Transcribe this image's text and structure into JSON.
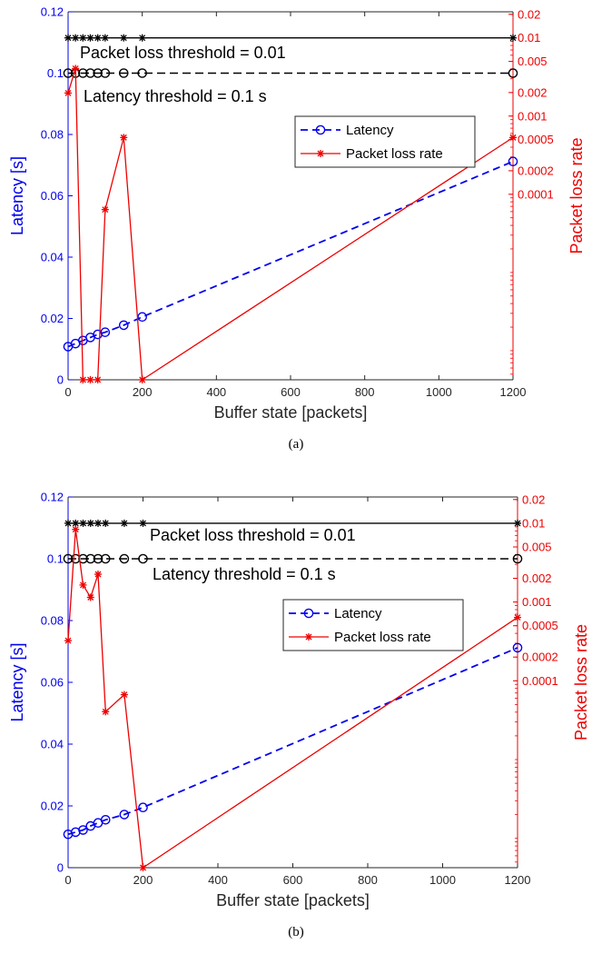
{
  "chart_data": [
    {
      "type": "line",
      "caption": "(a)",
      "xlabel": "Buffer state [packets]",
      "ylabel_left": "Latency [s]",
      "ylabel_right": "Packet loss rate",
      "xlim": [
        0,
        1200
      ],
      "ylim_left": [
        0,
        0.12
      ],
      "right_axis_scale": "log",
      "xticks": [
        0,
        200,
        400,
        600,
        800,
        1000,
        1200
      ],
      "yticks_left": [
        0,
        0.02,
        0.04,
        0.06,
        0.08,
        0.1,
        0.12
      ],
      "ytick_labels_left": [
        "0",
        "0.02",
        "0.04",
        "0.06",
        "0.08",
        "0.1",
        "0.12"
      ],
      "right_ticks": [
        {
          "label": "0.02",
          "value": 0.02
        },
        {
          "label": "0.01",
          "value": 0.01
        },
        {
          "label": "0.005",
          "value": 0.005
        },
        {
          "label": "0.002",
          "value": 0.002
        },
        {
          "label": "0.001",
          "value": 0.001
        },
        {
          "label": "0.0005",
          "value": 0.0005
        },
        {
          "label": "0.0002",
          "value": 0.0002
        },
        {
          "label": "0.0001",
          "value": 0.0001
        }
      ],
      "legend": {
        "placement": "upper-right",
        "entries": [
          "Latency",
          "Packet loss rate"
        ]
      },
      "annotations": [
        "Packet loss threshold = 0.01",
        "Latency threshold = 0.1 s"
      ],
      "thresholds": {
        "latency": 0.1,
        "packet_loss": 0.01
      },
      "threshold_marker_x": [
        0,
        20,
        40,
        60,
        80,
        100,
        150,
        200,
        1200
      ],
      "series": [
        {
          "name": "Latency",
          "axis": "left",
          "color": "#0000ee",
          "x": [
            0,
            20,
            40,
            60,
            80,
            100,
            150,
            200,
            1200
          ],
          "y": [
            0.0108,
            0.0118,
            0.0128,
            0.0138,
            0.0148,
            0.0155,
            0.0178,
            0.0205,
            0.0712
          ]
        },
        {
          "name": "Packet loss rate",
          "axis": "right",
          "color": "#ee0000",
          "x": [
            0,
            20,
            40,
            60,
            80,
            100,
            150,
            200,
            1200
          ],
          "y_axis_units": [
            0.0935,
            0.1015,
            0,
            0,
            0,
            0.0555,
            0.079,
            0,
            0.079
          ]
        }
      ]
    },
    {
      "type": "line",
      "caption": "(b)",
      "xlabel": "Buffer state [packets]",
      "ylabel_left": "Latency [s]",
      "ylabel_right": "Packet loss rate",
      "xlim": [
        0,
        1200
      ],
      "ylim_left": [
        0,
        0.12
      ],
      "right_axis_scale": "log",
      "xticks": [
        0,
        200,
        400,
        600,
        800,
        1000,
        1200
      ],
      "yticks_left": [
        0,
        0.02,
        0.04,
        0.06,
        0.08,
        0.1,
        0.12
      ],
      "ytick_labels_left": [
        "0",
        "0.02",
        "0.04",
        "0.06",
        "0.08",
        "0.1",
        "0.12"
      ],
      "right_ticks": [
        {
          "label": "0.02",
          "value": 0.02
        },
        {
          "label": "0.01",
          "value": 0.01
        },
        {
          "label": "0.005",
          "value": 0.005
        },
        {
          "label": "0.002",
          "value": 0.002
        },
        {
          "label": "0.001",
          "value": 0.001
        },
        {
          "label": "0.0005",
          "value": 0.0005
        },
        {
          "label": "0.0002",
          "value": 0.0002
        },
        {
          "label": "0.0001",
          "value": 0.0001
        }
      ],
      "legend": {
        "placement": "upper-right",
        "entries": [
          "Latency",
          "Packet loss rate"
        ]
      },
      "annotations": [
        "Packet loss threshold = 0.01",
        "Latency threshold = 0.1 s"
      ],
      "thresholds": {
        "latency": 0.1,
        "packet_loss": 0.01
      },
      "threshold_marker_x": [
        0,
        20,
        40,
        60,
        80,
        100,
        150,
        200,
        1200
      ],
      "series": [
        {
          "name": "Latency",
          "axis": "left",
          "color": "#0000ee",
          "x": [
            0,
            20,
            40,
            60,
            80,
            100,
            150,
            200,
            1200
          ],
          "y": [
            0.0108,
            0.0115,
            0.0122,
            0.0135,
            0.0145,
            0.0155,
            0.0172,
            0.0195,
            0.0712
          ]
        },
        {
          "name": "Packet loss rate",
          "axis": "right",
          "color": "#ee0000",
          "x": [
            0,
            20,
            40,
            60,
            80,
            100,
            150,
            200,
            1200
          ],
          "y_axis_units": [
            0.0735,
            0.1095,
            0.0915,
            0.0875,
            0.095,
            0.0505,
            0.056,
            0,
            0.081
          ]
        }
      ]
    }
  ]
}
